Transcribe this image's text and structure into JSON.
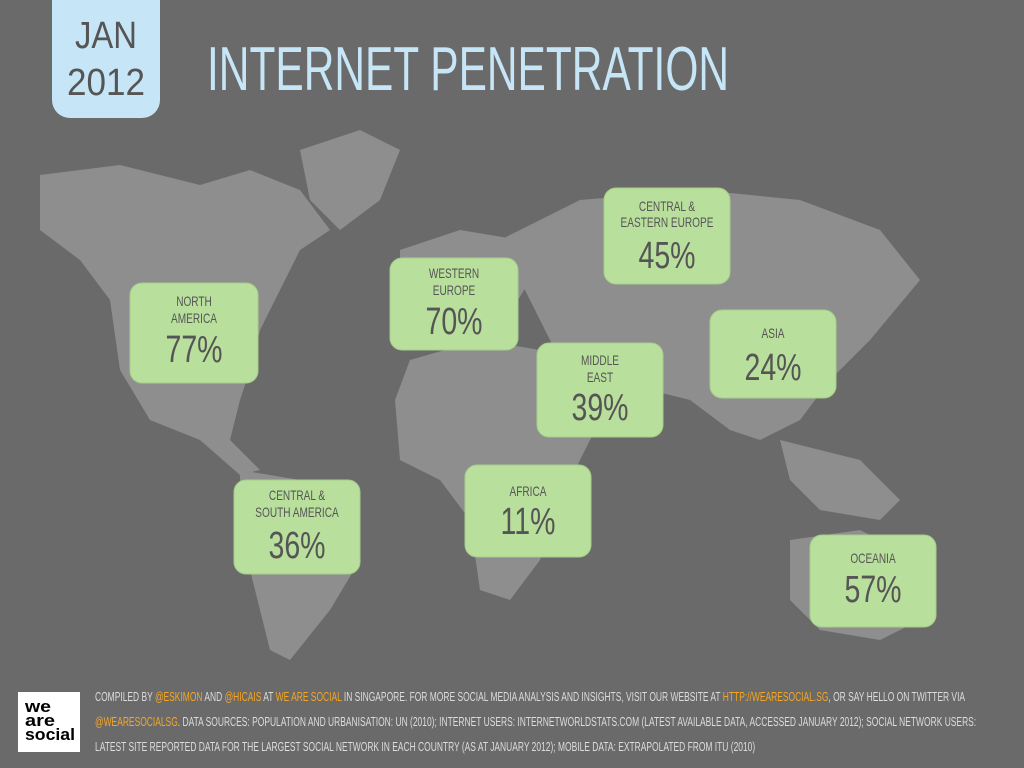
{
  "badge": {
    "lines": [
      "JAN",
      "2012"
    ]
  },
  "title": "INTERNET PENETRATION",
  "regions": [
    {
      "label": [
        "NORTH",
        "AMERICA"
      ],
      "value": "77%"
    },
    {
      "label": [
        "WESTERN",
        "EUROPE"
      ],
      "value": "70%"
    },
    {
      "label": [
        "CENTRAL &",
        "EASTERN EUROPE"
      ],
      "value": "45%"
    },
    {
      "label": [
        "MIDDLE",
        "EAST"
      ],
      "value": "39%"
    },
    {
      "label": [
        "ASIA"
      ],
      "value": "24%"
    },
    {
      "label": [
        "CENTRAL &",
        "SOUTH AMERICA"
      ],
      "value": "36%"
    },
    {
      "label": [
        "AFRICA"
      ],
      "value": "11%"
    },
    {
      "label": [
        "OCEANIA"
      ],
      "value": "57%"
    }
  ],
  "footer": [
    {
      "text": "COMPILED BY ",
      "highlight": false
    },
    {
      "text": "@ESKIMON",
      "highlight": true
    },
    {
      "text": " AND ",
      "highlight": false
    },
    {
      "text": "@HICAIS",
      "highlight": true
    },
    {
      "text": " AT ",
      "highlight": false
    },
    {
      "text": "WE ARE SOCIAL",
      "highlight": true
    },
    {
      "text": " IN SINGAPORE. FOR MORE SOCIAL MEDIA ANALYSIS AND INSIGHTS, VISIT OUR WEBSITE AT ",
      "highlight": false
    },
    {
      "text": "HTTP://WEARESOCIAL.SG",
      "highlight": true
    },
    {
      "text": ", OR SAY HELLO ON TWITTER VIA ",
      "highlight": false
    },
    {
      "text": "@WEARESOCIALSG",
      "highlight": true
    },
    {
      "text": ". DATA SOURCES: POPULATION AND URBANISATION: UN (2010); INTERNET USERS: INTERNETWORLDSTATS.COM (LATEST AVAILABLE DATA, ACCESSED JANUARY 2012); SOCIAL NETWORK USERS: LATEST SITE REPORTED DATA FOR THE LARGEST SOCIAL NETWORK IN EACH COUNTRY (AS AT JANUARY 2012); MOBILE DATA: EXTRAPOLATED FROM ITU (2010)",
      "highlight": false
    }
  ],
  "logo": [
    "we",
    "are",
    "social"
  ]
}
